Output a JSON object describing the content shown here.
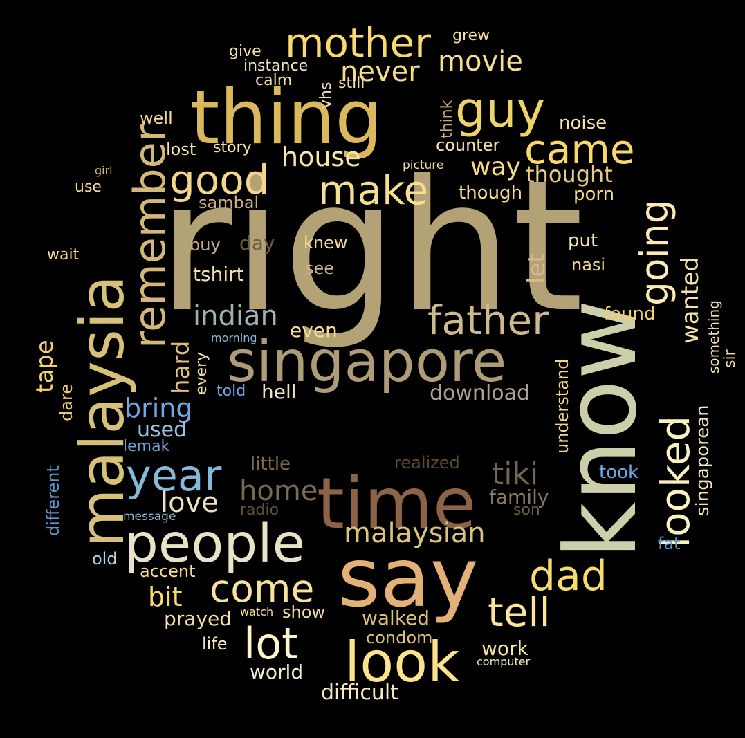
{
  "background_color": "#000000",
  "words": [
    {
      "text": "right",
      "color": "#B3A276"
    },
    {
      "text": "know",
      "color": "#CDCFAA"
    },
    {
      "text": "say",
      "color": "#E3B076"
    },
    {
      "text": "thing",
      "color": "#DBB85C"
    },
    {
      "text": "time",
      "color": "#8C6347"
    },
    {
      "text": "malaysia",
      "color": "#D7C077"
    },
    {
      "text": "singapore",
      "color": "#AE9B78"
    },
    {
      "text": "people",
      "color": "#E8E2C7"
    },
    {
      "text": "look",
      "color": "#FCE28A"
    },
    {
      "text": "guy",
      "color": "#EDD468"
    },
    {
      "text": "remember",
      "color": "#D3B879"
    },
    {
      "text": "mother",
      "color": "#F8DA6E"
    },
    {
      "text": "father",
      "color": "#CDB98D"
    },
    {
      "text": "year",
      "color": "#86B8D8"
    },
    {
      "text": "came",
      "color": "#F8D76B"
    },
    {
      "text": "make",
      "color": "#F6DF8F"
    },
    {
      "text": "good",
      "color": "#F4D58A"
    },
    {
      "text": "looked",
      "color": "#FAF0C0"
    },
    {
      "text": "going",
      "color": "#FBEBB3"
    },
    {
      "text": "dad",
      "color": "#F8DB6B"
    },
    {
      "text": "tell",
      "color": "#FCE59A"
    },
    {
      "text": "lot",
      "color": "#FEF5C8"
    },
    {
      "text": "come",
      "color": "#F6E29E"
    },
    {
      "text": "malaysian",
      "color": "#DBC37D"
    },
    {
      "text": "tiki",
      "color": "#77654B"
    },
    {
      "text": "home",
      "color": "#7B6A50"
    },
    {
      "text": "love",
      "color": "#ECE1C1"
    },
    {
      "text": "indian",
      "color": "#9CB4B1"
    },
    {
      "text": "house",
      "color": "#F8E5AA"
    },
    {
      "text": "never",
      "color": "#F8DC85"
    },
    {
      "text": "movie",
      "color": "#F6DE8E"
    },
    {
      "text": "bring",
      "color": "#6EA9E2"
    },
    {
      "text": "way",
      "color": "#FADC84"
    },
    {
      "text": "thought",
      "color": "#E6CC85"
    },
    {
      "text": "wanted",
      "color": "#F6E2A6"
    },
    {
      "text": "tape",
      "color": "#F3D26D"
    },
    {
      "text": "hard",
      "color": "#E1BE7A"
    },
    {
      "text": "let",
      "color": "#D9B98A"
    },
    {
      "text": "bit",
      "color": "#F8DA6E"
    },
    {
      "text": "download",
      "color": "#ABA293"
    },
    {
      "text": "used",
      "color": "#9BC2E0"
    },
    {
      "text": "tshirt",
      "color": "#F0E1B2"
    },
    {
      "text": "family",
      "color": "#87785D"
    },
    {
      "text": "little",
      "color": "#7A6A4D"
    },
    {
      "text": "day",
      "color": "#6E5E40"
    },
    {
      "text": "singaporean",
      "color": "#F3E6BF"
    },
    {
      "text": "hell",
      "color": "#F0E5C3"
    },
    {
      "text": "understand",
      "color": "#F6D87C"
    },
    {
      "text": "even",
      "color": "#F6DD8D"
    },
    {
      "text": "knew",
      "color": "#F4DB96"
    },
    {
      "text": "see",
      "color": "#CBB68C"
    },
    {
      "text": "found",
      "color": "#F2D06D"
    },
    {
      "text": "counter",
      "color": "#F5E2A8"
    },
    {
      "text": "noise",
      "color": "#F5E3A9"
    },
    {
      "text": "though",
      "color": "#F5DD91"
    },
    {
      "text": "porn",
      "color": "#F6DA7F"
    },
    {
      "text": "put",
      "color": "#F8E6AC"
    },
    {
      "text": "nasi",
      "color": "#F4D98A"
    },
    {
      "text": "sambal",
      "color": "#C6AF84"
    },
    {
      "text": "buy",
      "color": "#C5AD82"
    },
    {
      "text": "walked",
      "color": "#DCC176"
    },
    {
      "text": "condom",
      "color": "#DEC27A"
    },
    {
      "text": "work",
      "color": "#F8E39D"
    },
    {
      "text": "world",
      "color": "#F4EDD4"
    },
    {
      "text": "difficult",
      "color": "#F6E8C1"
    },
    {
      "text": "prayed",
      "color": "#F7E3A5"
    },
    {
      "text": "show",
      "color": "#F4DE9C"
    },
    {
      "text": "life",
      "color": "#F9EBC0"
    },
    {
      "text": "accent",
      "color": "#F8DE8C"
    },
    {
      "text": "old",
      "color": "#BAD4E8"
    },
    {
      "text": "different",
      "color": "#5C97CE"
    },
    {
      "text": "dare",
      "color": "#EECB6D"
    },
    {
      "text": "every",
      "color": "#F3DCA0"
    },
    {
      "text": "told",
      "color": "#6FA9E3"
    },
    {
      "text": "lemak",
      "color": "#6FA5D9"
    },
    {
      "text": "message",
      "color": "#8DB3D0"
    },
    {
      "text": "radio",
      "color": "#5F5036"
    },
    {
      "text": "son",
      "color": "#6D5D3E"
    },
    {
      "text": "realized",
      "color": "#5B4B31"
    },
    {
      "text": "took",
      "color": "#6FA9E3"
    },
    {
      "text": "fat",
      "color": "#5A95CE"
    },
    {
      "text": "sir",
      "color": "#F2E0A9"
    },
    {
      "text": "something",
      "color": "#F2E2B6"
    },
    {
      "text": "lost",
      "color": "#F8E5A8"
    },
    {
      "text": "story",
      "color": "#F8E5A8"
    },
    {
      "text": "well",
      "color": "#F2D98F"
    },
    {
      "text": "use",
      "color": "#F8DC88"
    },
    {
      "text": "wait",
      "color": "#F4DB8E"
    },
    {
      "text": "girl",
      "color": "#DCB86B"
    },
    {
      "text": "give",
      "color": "#F2E1A7"
    },
    {
      "text": "instance",
      "color": "#F6E6B6"
    },
    {
      "text": "calm",
      "color": "#F5E0A4"
    },
    {
      "text": "still",
      "color": "#F4DE9C"
    },
    {
      "text": "vhs",
      "color": "#F1E0AC"
    },
    {
      "text": "grew",
      "color": "#F5DE9D"
    },
    {
      "text": "think",
      "color": "#C3A97E"
    },
    {
      "text": "picture",
      "color": "#F5DC98"
    },
    {
      "text": "morning",
      "color": "#86B6DA"
    },
    {
      "text": "computer",
      "color": "#F3E7C4"
    },
    {
      "text": "watch",
      "color": "#F2DF9A"
    }
  ]
}
